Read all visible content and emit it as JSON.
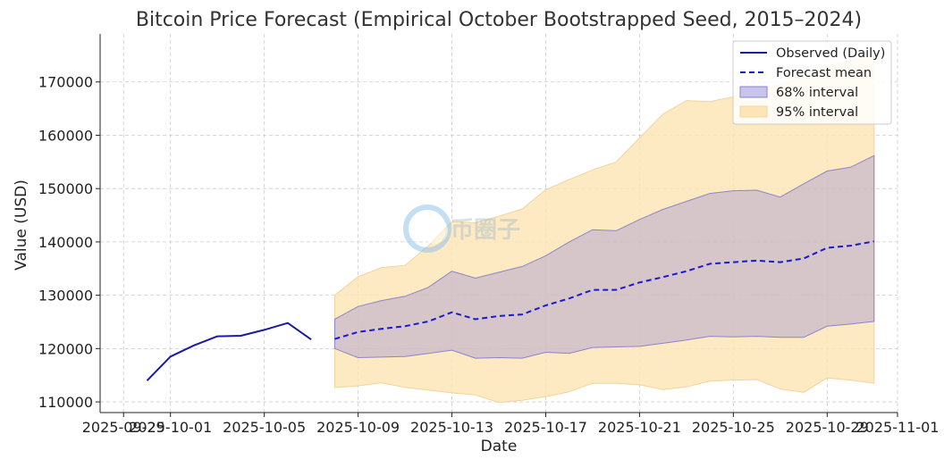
{
  "chart_data": {
    "type": "line",
    "title": "Bitcoin Price Forecast (Empirical October Bootstrapped Seed, 2015–2024)",
    "xlabel": "Date",
    "ylabel": "Value (USD)",
    "xlim": [
      "2025-09-28",
      "2025-11-01"
    ],
    "ylim": [
      108000,
      179000
    ],
    "grid": true,
    "legend_position": "top-right",
    "x_ticks": [
      "2025-09-29",
      "2025-10-01",
      "2025-10-05",
      "2025-10-09",
      "2025-10-13",
      "2025-10-17",
      "2025-10-21",
      "2025-10-25",
      "2025-10-29",
      "2025-11-01"
    ],
    "y_ticks": [
      110000,
      120000,
      130000,
      140000,
      150000,
      160000,
      170000
    ],
    "observed": {
      "name": "Observed (Daily)",
      "color": "#1a1aa8",
      "x": [
        "2025-09-30",
        "2025-10-01",
        "2025-10-02",
        "2025-10-03",
        "2025-10-04",
        "2025-10-05",
        "2025-10-06",
        "2025-10-07"
      ],
      "y": [
        114000,
        118500,
        120600,
        122300,
        122400,
        123500,
        124800,
        121700
      ]
    },
    "forecast": {
      "x": [
        "2025-10-08",
        "2025-10-09",
        "2025-10-10",
        "2025-10-11",
        "2025-10-12",
        "2025-10-13",
        "2025-10-14",
        "2025-10-15",
        "2025-10-16",
        "2025-10-17",
        "2025-10-18",
        "2025-10-19",
        "2025-10-20",
        "2025-10-21",
        "2025-10-22",
        "2025-10-23",
        "2025-10-24",
        "2025-10-25",
        "2025-10-26",
        "2025-10-27",
        "2025-10-28",
        "2025-10-29",
        "2025-10-30",
        "2025-10-31"
      ],
      "mean": {
        "name": "Forecast mean",
        "color": "#1a1ad0",
        "y": [
          121800,
          123100,
          123700,
          124200,
          125100,
          126800,
          125500,
          126100,
          126400,
          128100,
          129400,
          131000,
          131000,
          132400,
          133400,
          134500,
          135900,
          136200,
          136500,
          136200,
          136900,
          138900,
          139300,
          140100
        ]
      },
      "interval_68": {
        "name": "68% interval",
        "color": "#9b92d6",
        "lower": [
          120000,
          118300,
          118400,
          118500,
          119100,
          119700,
          118200,
          118300,
          118200,
          119300,
          119100,
          120200,
          120300,
          120400,
          121000,
          121600,
          122300,
          122200,
          122300,
          122100,
          122100,
          124200,
          124600,
          125100
        ],
        "upper": [
          125500,
          127900,
          129000,
          129800,
          131500,
          134500,
          133200,
          134300,
          135400,
          137400,
          140000,
          142300,
          142100,
          144200,
          146100,
          147600,
          149100,
          149600,
          149700,
          148400,
          150900,
          153300,
          154000,
          156200
        ]
      },
      "interval_95": {
        "name": "95% interval",
        "color": "#fde5b7",
        "lower": [
          112700,
          113000,
          113600,
          112700,
          112200,
          111700,
          111300,
          109900,
          110300,
          111000,
          111900,
          113500,
          113500,
          113200,
          112300,
          112800,
          113900,
          114100,
          114200,
          112400,
          111800,
          114500,
          114100,
          113500
        ],
        "upper": [
          130000,
          133500,
          135200,
          135600,
          139300,
          143800,
          143600,
          144800,
          146200,
          149800,
          151700,
          153500,
          155000,
          159500,
          164000,
          166500,
          166300,
          167200,
          169000,
          169400,
          171000,
          173000,
          174000,
          175000
        ]
      }
    }
  },
  "legend": [
    {
      "label": "Observed (Daily)",
      "style": "solid-line",
      "color": "#1a1aa8"
    },
    {
      "label": "Forecast mean",
      "style": "dashed-line",
      "color": "#1a1ad0"
    },
    {
      "label": "68% interval",
      "style": "patch",
      "color": "#c9c4ee"
    },
    {
      "label": "95% interval",
      "style": "patch",
      "color": "#fde5b7"
    }
  ],
  "watermark": {
    "text": "币圈子",
    "icon": "logo-icon"
  }
}
